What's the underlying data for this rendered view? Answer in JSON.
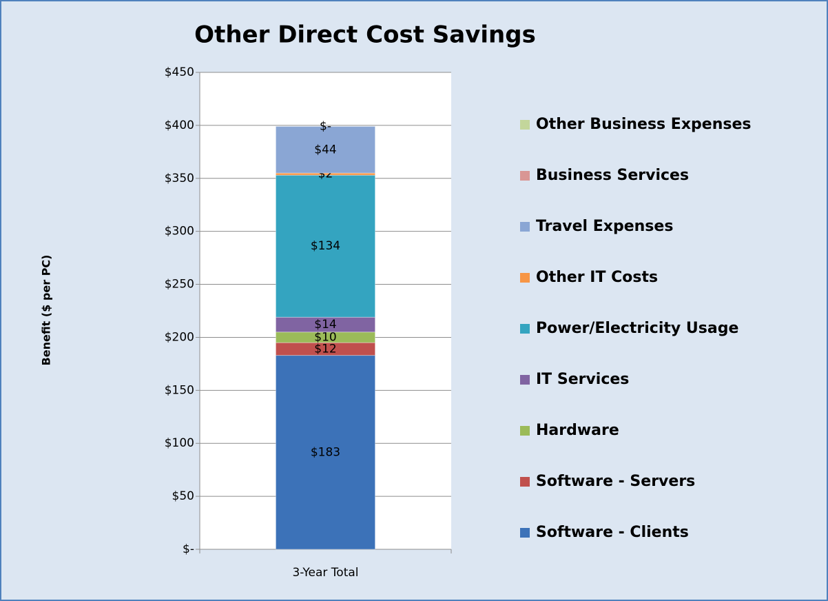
{
  "chart_data": {
    "type": "stacked_bar",
    "title": "Other Direct Cost Savings",
    "y_axis_label": "Benefit ($ per PC)",
    "categories": [
      "3-Year Total"
    ],
    "ylim": [
      0,
      450
    ],
    "yticks": [
      {
        "value": 0,
        "label": "$-"
      },
      {
        "value": 50,
        "label": "$50"
      },
      {
        "value": 100,
        "label": "$100"
      },
      {
        "value": 150,
        "label": "$150"
      },
      {
        "value": 200,
        "label": "$200"
      },
      {
        "value": 250,
        "label": "$250"
      },
      {
        "value": 300,
        "label": "$300"
      },
      {
        "value": 350,
        "label": "$350"
      },
      {
        "value": 400,
        "label": "$400"
      },
      {
        "value": 450,
        "label": "$450"
      }
    ],
    "grid": true,
    "legend": "right",
    "series": [
      {
        "name": "Software - Clients",
        "color": "#3c72b8",
        "values": [
          183
        ],
        "value_labels": [
          "$183"
        ]
      },
      {
        "name": "Software - Servers",
        "color": "#c0504d",
        "values": [
          12
        ],
        "value_labels": [
          "$12"
        ]
      },
      {
        "name": "Hardware",
        "color": "#9bbb59",
        "values": [
          10
        ],
        "value_labels": [
          "$10"
        ]
      },
      {
        "name": "IT Services",
        "color": "#8064a2",
        "values": [
          14
        ],
        "value_labels": [
          "$14"
        ]
      },
      {
        "name": "Power/Electricity Usage",
        "color": "#34a4c0",
        "values": [
          134
        ],
        "value_labels": [
          "$134"
        ]
      },
      {
        "name": "Other IT Costs",
        "color": "#f79646",
        "values": [
          2
        ],
        "value_labels": [
          "$2"
        ]
      },
      {
        "name": "Travel Expenses",
        "color": "#8aa6d4",
        "values": [
          44
        ],
        "value_labels": [
          "$44"
        ]
      },
      {
        "name": "Business Services",
        "color": "#d99694",
        "values": [
          0
        ]
      },
      {
        "name": "Other Business Expenses",
        "color": "#c3d69b",
        "values": [
          0
        ],
        "value_labels": [
          "$-"
        ]
      }
    ]
  }
}
